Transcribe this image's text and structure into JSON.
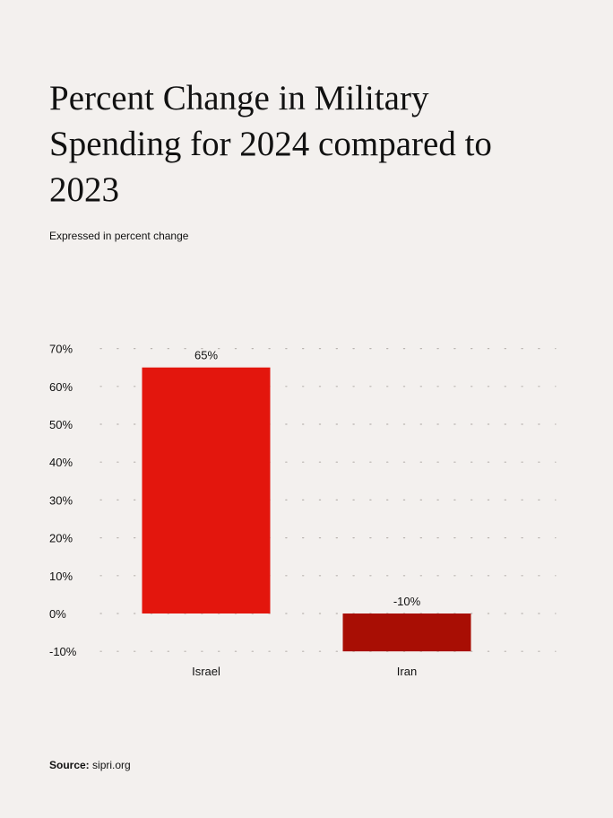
{
  "title": "Percent Change in Military Spending for 2024 compared to 2023",
  "subtitle": "Expressed in percent change",
  "source_label": "Source:",
  "source_value": "sipri.org",
  "chart_data": {
    "type": "bar",
    "title": "Percent Change in Military Spending for 2024 compared to 2023",
    "subtitle": "Expressed in percent change",
    "xlabel": "",
    "ylabel": "",
    "categories": [
      "Israel",
      "Iran"
    ],
    "values": [
      65,
      -10
    ],
    "data_labels": [
      "65%",
      "-10%"
    ],
    "colors": [
      "#e3160d",
      "#a80e04"
    ],
    "ylim": [
      -10,
      70
    ],
    "yticks": [
      -10,
      0,
      10,
      20,
      30,
      40,
      50,
      60,
      70
    ],
    "ytick_labels": [
      "-10%",
      "0%",
      "10%",
      "20%",
      "30%",
      "40%",
      "50%",
      "60%",
      "70%"
    ],
    "grid": "dotted horizontal",
    "legend": "none"
  }
}
